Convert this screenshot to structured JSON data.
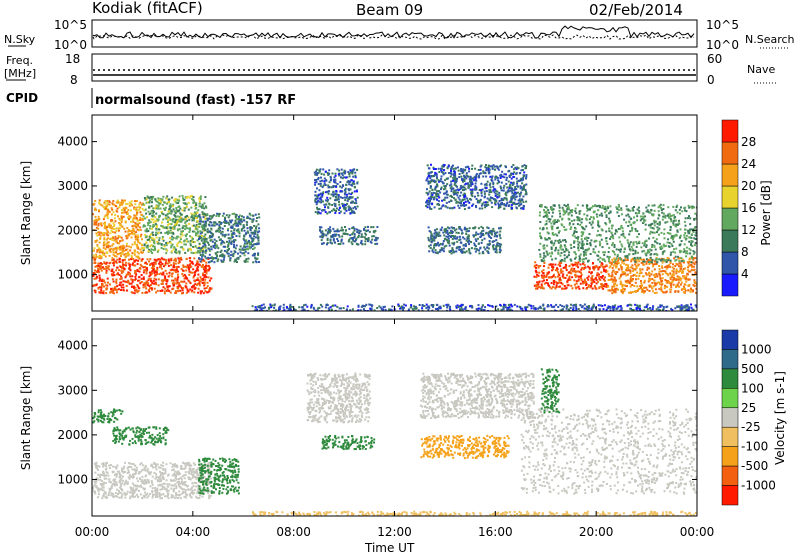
{
  "header": {
    "station": "Kodiak (fitACF)",
    "beam": "Beam 09",
    "date": "02/Feb/2014"
  },
  "noise_panel": {
    "left_label": "N.Sky",
    "right_label": "N.Search",
    "yticks": [
      "10^5",
      "10^0"
    ]
  },
  "freq_panel": {
    "left_label_1": "Freq.",
    "left_label_2": "[MHz]",
    "left_ticks": [
      "18",
      "8"
    ],
    "right_label": "Nave",
    "right_ticks": [
      "60",
      "0"
    ]
  },
  "cpid_panel": {
    "label": "CPID",
    "value": "normalsound (fast) -157 RF"
  },
  "time_axis": {
    "label": "Time UT",
    "ticks": [
      "00:00",
      "04:00",
      "08:00",
      "12:00",
      "16:00",
      "20:00",
      "00:00"
    ]
  },
  "colors": {
    "power_scale": [
      "#1a1aff",
      "#2f56a8",
      "#3a7a5a",
      "#62a85e",
      "#e8d22e",
      "#f5a21a",
      "#f26a10",
      "#ff1a00"
    ],
    "velocity_scale": [
      "#1a3aa8",
      "#2f6a8a",
      "#2e8a3c",
      "#6dd34a",
      "#c8c8c0",
      "#f0c060",
      "#f5a21a",
      "#f26010",
      "#ff1a00"
    ],
    "noise_line": "#000000"
  },
  "chart_data": [
    {
      "type": "heatmap",
      "panel": "power",
      "ylabel": "Slant Range [km]",
      "xlabel": "Time UT",
      "ylim": [
        180,
        4600
      ],
      "yticks": [
        1000,
        2000,
        3000,
        4000
      ],
      "colorbar_label": "Power [dB]",
      "colorbar_ticks": [
        4,
        8,
        12,
        16,
        20,
        24,
        28
      ],
      "colorbar_range": [
        0,
        32
      ],
      "regions": [
        {
          "t": [
            0.0,
            4.7
          ],
          "r": [
            600,
            1400
          ],
          "value": 28
        },
        {
          "t": [
            0.0,
            2.0
          ],
          "r": [
            1400,
            2700
          ],
          "value": 22
        },
        {
          "t": [
            2.0,
            4.5
          ],
          "r": [
            1500,
            2800
          ],
          "value": 14
        },
        {
          "t": [
            4.2,
            6.6
          ],
          "r": [
            1300,
            2400
          ],
          "value": 9
        },
        {
          "t": [
            8.8,
            10.5
          ],
          "r": [
            2400,
            3400
          ],
          "value": 7
        },
        {
          "t": [
            9.0,
            11.3
          ],
          "r": [
            1700,
            2100
          ],
          "value": 8
        },
        {
          "t": [
            13.2,
            17.2
          ],
          "r": [
            2500,
            3500
          ],
          "value": 7
        },
        {
          "t": [
            13.3,
            16.2
          ],
          "r": [
            1500,
            2100
          ],
          "value": 8
        },
        {
          "t": [
            17.5,
            20.4
          ],
          "r": [
            700,
            1300
          ],
          "value": 28
        },
        {
          "t": [
            20.4,
            24.0
          ],
          "r": [
            600,
            1400
          ],
          "value": 24
        },
        {
          "t": [
            17.7,
            24.0
          ],
          "r": [
            1300,
            2600
          ],
          "value": 12
        },
        {
          "t": [
            6.3,
            24.0
          ],
          "r": [
            180,
            350
          ],
          "value": 6
        }
      ]
    },
    {
      "type": "heatmap",
      "panel": "velocity",
      "ylabel": "Slant Range [km]",
      "xlabel": "Time UT",
      "ylim": [
        180,
        4600
      ],
      "yticks": [
        1000,
        2000,
        3000,
        4000
      ],
      "colorbar_label": "Velocity [m s-1]",
      "colorbar_ticks": [
        1000,
        500,
        100,
        25,
        -25,
        -100,
        -500,
        -1000
      ],
      "regions": [
        {
          "t": [
            0.0,
            4.7
          ],
          "r": [
            600,
            1400
          ],
          "value": 0
        },
        {
          "t": [
            0.0,
            1.2
          ],
          "r": [
            2300,
            2600
          ],
          "value": 200
        },
        {
          "t": [
            0.8,
            3.0
          ],
          "r": [
            1800,
            2200
          ],
          "value": 150
        },
        {
          "t": [
            4.2,
            5.8
          ],
          "r": [
            700,
            1500
          ],
          "value": 120
        },
        {
          "t": [
            8.5,
            11.0
          ],
          "r": [
            2300,
            3400
          ],
          "value": 0
        },
        {
          "t": [
            9.1,
            11.2
          ],
          "r": [
            1700,
            2000
          ],
          "value": 300
        },
        {
          "t": [
            13.0,
            16.5
          ],
          "r": [
            1500,
            2000
          ],
          "value": -300
        },
        {
          "t": [
            13.0,
            17.5
          ],
          "r": [
            2400,
            3400
          ],
          "value": 0
        },
        {
          "t": [
            17.0,
            24.0
          ],
          "r": [
            700,
            2600
          ],
          "value": 0
        },
        {
          "t": [
            17.8,
            18.5
          ],
          "r": [
            2500,
            3500
          ],
          "value": 150
        },
        {
          "t": [
            6.3,
            24.0
          ],
          "r": [
            180,
            300
          ],
          "value": -50
        }
      ]
    }
  ]
}
